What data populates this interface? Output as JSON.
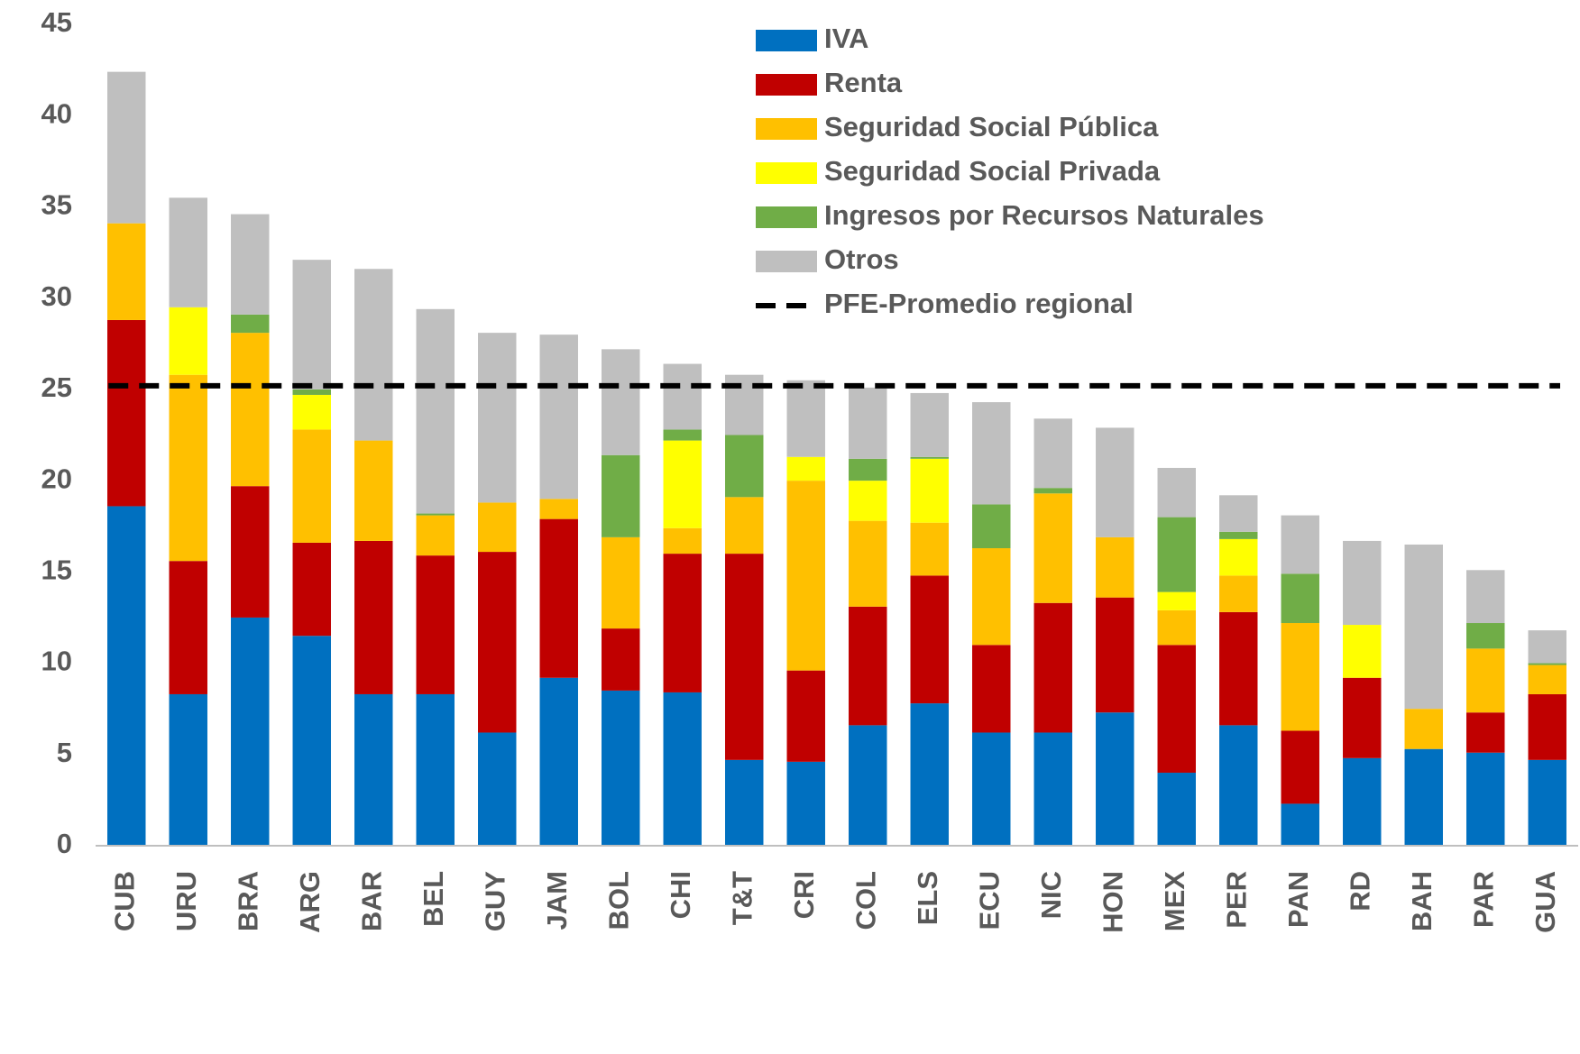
{
  "chart_data": {
    "type": "stacked_bar",
    "categories": [
      "CUB",
      "URU",
      "BRA",
      "ARG",
      "BAR",
      "BEL",
      "GUY",
      "JAM",
      "BOL",
      "CHI",
      "T&T",
      "CRI",
      "COL",
      "ELS",
      "ECU",
      "NIC",
      "HON",
      "MEX",
      "PER",
      "PAN",
      "RD",
      "BAH",
      "PAR",
      "GUA"
    ],
    "series": [
      {
        "name": "IVA",
        "color": "#0070c0",
        "values": [
          18.6,
          8.3,
          12.5,
          11.5,
          8.3,
          8.3,
          6.2,
          9.2,
          8.5,
          8.4,
          4.7,
          4.6,
          6.6,
          7.8,
          6.2,
          6.2,
          7.3,
          4.0,
          6.6,
          2.3,
          4.8,
          5.3,
          5.1,
          4.7
        ]
      },
      {
        "name": "Renta",
        "color": "#c00000",
        "values": [
          10.2,
          7.3,
          7.2,
          5.1,
          8.4,
          7.6,
          9.9,
          8.7,
          3.4,
          7.6,
          11.3,
          5.0,
          6.5,
          7.0,
          4.8,
          7.1,
          6.3,
          7.0,
          6.2,
          4.0,
          4.4,
          0,
          2.2,
          3.6
        ]
      },
      {
        "name": "Seguridad Social Pública",
        "color": "#ffc000",
        "values": [
          5.3,
          10.2,
          8.4,
          6.2,
          5.5,
          2.2,
          2.7,
          1.1,
          5.0,
          1.4,
          3.1,
          10.4,
          4.7,
          2.9,
          5.3,
          6.0,
          3.3,
          1.9,
          2.0,
          5.9,
          0,
          2.2,
          3.5,
          1.6
        ]
      },
      {
        "name": "Seguridad Social Privada",
        "color": "#ffff00",
        "values": [
          0,
          3.7,
          0,
          1.9,
          0,
          0,
          0,
          0,
          0,
          4.8,
          0,
          1.3,
          2.2,
          3.5,
          0,
          0,
          0,
          1.0,
          2.0,
          0,
          2.9,
          0,
          0,
          0
        ]
      },
      {
        "name": "Ingresos por Recursos Naturales",
        "color": "#70ad47",
        "values": [
          0,
          0,
          1.0,
          0.3,
          0,
          0.1,
          0,
          0,
          4.5,
          0.6,
          3.4,
          0,
          1.2,
          0.1,
          2.4,
          0.3,
          0,
          4.1,
          0.4,
          2.7,
          0,
          0,
          1.4,
          0.1
        ]
      },
      {
        "name": "Otros",
        "color": "#bfbfbf",
        "values": [
          8.3,
          6.0,
          5.5,
          7.1,
          9.4,
          11.2,
          9.3,
          9.0,
          5.8,
          3.6,
          3.3,
          4.2,
          3.9,
          3.5,
          5.6,
          3.8,
          6.0,
          2.7,
          2.0,
          3.2,
          4.6,
          9.0,
          2.9,
          1.8
        ]
      }
    ],
    "reference_line": {
      "name": "PFE-Promedio regional",
      "value": 25.2,
      "color": "#000000"
    },
    "ylim": [
      0,
      45
    ],
    "yticks": [
      0,
      5,
      10,
      15,
      20,
      25,
      30,
      35,
      40,
      45
    ]
  }
}
